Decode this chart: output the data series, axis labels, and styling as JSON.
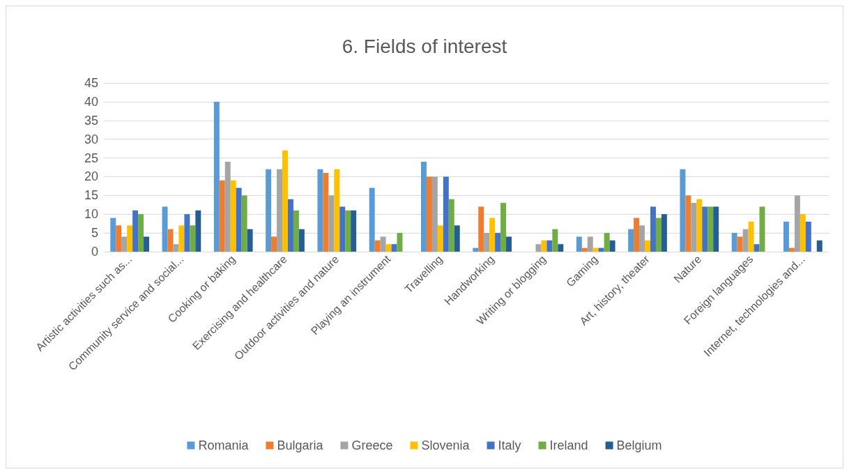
{
  "chart_data": {
    "type": "bar",
    "title": "6. Fields of interest",
    "categories": [
      "Artistic activities such as...",
      "Community service and social...",
      "Cooking or baking",
      "Exercising and healthcare",
      "Outdoor activities and nature",
      "Playing an instrument",
      "Travelling",
      "Handworking",
      "Writing or blogging",
      "Gaming",
      "Art, history, theater",
      "Nature",
      "Foreign languages",
      "Internet, technologies and..."
    ],
    "series": [
      {
        "name": "Romania",
        "color": "#5b9bd5",
        "values": [
          9,
          12,
          40,
          22,
          22,
          17,
          24,
          1,
          null,
          4,
          6,
          22,
          5,
          8
        ]
      },
      {
        "name": "Bulgaria",
        "color": "#ed7d31",
        "values": [
          7,
          6,
          19,
          4,
          21,
          3,
          20,
          12,
          null,
          1,
          9,
          15,
          4,
          1
        ]
      },
      {
        "name": "Greece",
        "color": "#a5a5a5",
        "values": [
          4,
          2,
          24,
          22,
          15,
          4,
          20,
          5,
          2,
          4,
          7,
          13,
          6,
          15
        ]
      },
      {
        "name": "Slovenia",
        "color": "#ffc000",
        "values": [
          7,
          7,
          19,
          27,
          22,
          2,
          7,
          9,
          3,
          1,
          3,
          14,
          8,
          10
        ]
      },
      {
        "name": "Italy",
        "color": "#4472c4",
        "values": [
          11,
          10,
          17,
          14,
          12,
          2,
          20,
          5,
          3,
          1,
          12,
          12,
          2,
          8
        ]
      },
      {
        "name": "Ireland",
        "color": "#70ad47",
        "values": [
          10,
          7,
          15,
          11,
          11,
          5,
          14,
          13,
          6,
          5,
          9,
          12,
          12,
          null
        ]
      },
      {
        "name": "Belgium",
        "color": "#255e91",
        "values": [
          4,
          11,
          6,
          6,
          11,
          null,
          7,
          4,
          2,
          3,
          10,
          12,
          null,
          3
        ]
      }
    ],
    "ylim": [
      0,
      45
    ],
    "yticks": [
      0,
      5,
      10,
      15,
      20,
      25,
      30,
      35,
      40,
      45
    ],
    "grid": "y",
    "legend": "bottom"
  }
}
